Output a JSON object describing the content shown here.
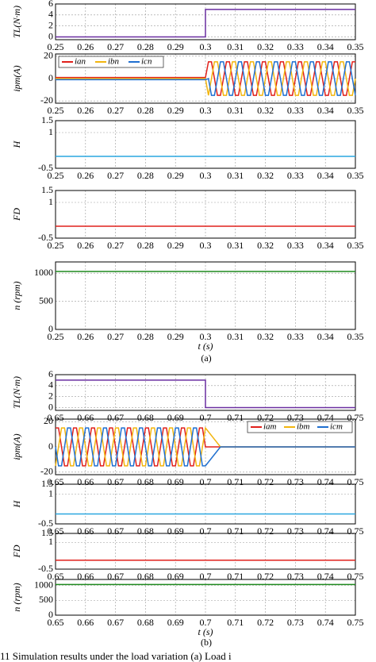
{
  "chart_data": [
    {
      "type": "line",
      "ylabel": "TL(N·m)",
      "x": [
        0.25,
        0.3,
        0.3,
        0.35
      ],
      "series": [
        {
          "color": "#6a2fa0",
          "values": [
            0,
            0,
            5,
            5
          ]
        }
      ],
      "xlim": [
        0.25,
        0.35
      ],
      "xticks": [
        0.25,
        0.26,
        0.27,
        0.28,
        0.29,
        0.3,
        0.31,
        0.32,
        0.33,
        0.34,
        0.35
      ],
      "ylim": [
        -0.5,
        6
      ],
      "yticks": [
        0,
        2,
        4,
        6
      ],
      "grid": true
    },
    {
      "type": "line",
      "ylabel": "ipm(A)",
      "legend": "upper left",
      "x": [
        0.25,
        0.3,
        0.301,
        0.302,
        0.303,
        0.304,
        0.305,
        0.306,
        0.307,
        0.308,
        0.309,
        0.31,
        0.311,
        0.312,
        0.313,
        0.314,
        0.315,
        0.316,
        0.317,
        0.318,
        0.319,
        0.32,
        0.321,
        0.322,
        0.323,
        0.324,
        0.325,
        0.326,
        0.327,
        0.328,
        0.329,
        0.33,
        0.331,
        0.332,
        0.333,
        0.334,
        0.335,
        0.336,
        0.337,
        0.338,
        0.339,
        0.34,
        0.341,
        0.342,
        0.343,
        0.344,
        0.345,
        0.346,
        0.347,
        0.348,
        0.349,
        0.35
      ],
      "series": [
        {
          "name": "ian",
          "color": "#e0201b",
          "values": [
            1,
            1,
            15,
            15,
            0,
            -15,
            -15,
            0,
            15,
            15,
            0,
            -15,
            -15,
            0,
            15,
            15,
            0,
            -15,
            -15,
            0,
            15,
            15,
            0,
            -15,
            -15,
            0,
            15,
            15,
            0,
            -15,
            -15,
            0,
            15,
            15,
            0,
            -15,
            -15,
            0,
            15,
            15,
            0,
            -15,
            -15,
            0,
            15,
            15,
            0,
            -15,
            -15,
            0,
            15,
            15
          ]
        },
        {
          "name": "ibn",
          "color": "#f2b50f",
          "values": [
            0,
            0,
            -15,
            0,
            15,
            15,
            0,
            -15,
            -15,
            0,
            15,
            15,
            0,
            -15,
            -15,
            0,
            15,
            15,
            0,
            -15,
            -15,
            0,
            15,
            15,
            0,
            -15,
            -15,
            0,
            15,
            15,
            0,
            -15,
            -15,
            0,
            15,
            15,
            0,
            -15,
            -15,
            0,
            15,
            15,
            0,
            -15,
            -15,
            0,
            15,
            15,
            0,
            -15,
            -15,
            0
          ]
        },
        {
          "name": "icn",
          "color": "#1f6fd0",
          "values": [
            -1,
            -1,
            0,
            -15,
            -15,
            0,
            15,
            15,
            0,
            -15,
            -15,
            0,
            15,
            15,
            0,
            -15,
            -15,
            0,
            15,
            15,
            0,
            -15,
            -15,
            0,
            15,
            15,
            0,
            -15,
            -15,
            0,
            15,
            15,
            0,
            -15,
            -15,
            0,
            15,
            15,
            0,
            -15,
            -15,
            0,
            15,
            15,
            0,
            -15,
            -15,
            0,
            15,
            15,
            0,
            -15
          ]
        }
      ],
      "xlim": [
        0.25,
        0.35
      ],
      "xticks": [
        0.25,
        0.26,
        0.27,
        0.28,
        0.29,
        0.3,
        0.31,
        0.32,
        0.33,
        0.34,
        0.35
      ],
      "ylim": [
        -22,
        22
      ],
      "yticks": [
        -20,
        0,
        20
      ],
      "grid": true
    },
    {
      "type": "line",
      "ylabel": "H",
      "x": [
        0.25,
        0.35
      ],
      "series": [
        {
          "color": "#2aa7e0",
          "values": [
            0,
            0
          ]
        }
      ],
      "xlim": [
        0.25,
        0.35
      ],
      "xticks": [
        0.25,
        0.26,
        0.27,
        0.28,
        0.29,
        0.3,
        0.31,
        0.32,
        0.33,
        0.34,
        0.35
      ],
      "ylim": [
        -0.5,
        1.5
      ],
      "yticks": [
        -0.5,
        1,
        1.5
      ],
      "grid": true
    },
    {
      "type": "line",
      "ylabel": "FD",
      "x": [
        0.25,
        0.35
      ],
      "series": [
        {
          "color": "#e0201b",
          "values": [
            0,
            0
          ]
        }
      ],
      "xlim": [
        0.25,
        0.35
      ],
      "xticks": [
        0.25,
        0.26,
        0.27,
        0.28,
        0.29,
        0.3,
        0.31,
        0.32,
        0.33,
        0.34,
        0.35
      ],
      "ylim": [
        -0.5,
        1.5
      ],
      "yticks": [
        -0.5,
        1,
        1.5
      ],
      "grid": true
    },
    {
      "type": "line",
      "ylabel": "n (rpm)",
      "xlabel": "t (s)",
      "x": [
        0.25,
        0.35
      ],
      "series": [
        {
          "color": "#1f8a1f",
          "values": [
            1030,
            1030
          ]
        }
      ],
      "xlim": [
        0.25,
        0.35
      ],
      "xticks": [
        0.25,
        0.26,
        0.27,
        0.28,
        0.29,
        0.3,
        0.31,
        0.32,
        0.33,
        0.34,
        0.35
      ],
      "ylim": [
        0,
        1200
      ],
      "yticks": [
        0,
        500,
        1000
      ],
      "grid": true
    },
    {
      "type": "line",
      "ylabel": "TL(N·m)",
      "x": [
        0.65,
        0.7,
        0.7,
        0.75
      ],
      "series": [
        {
          "color": "#6a2fa0",
          "values": [
            5,
            5,
            0,
            0
          ]
        }
      ],
      "xlim": [
        0.65,
        0.75
      ],
      "xticks": [
        0.65,
        0.66,
        0.67,
        0.68,
        0.69,
        0.7,
        0.71,
        0.72,
        0.73,
        0.74,
        0.75
      ],
      "ylim": [
        -0.5,
        6
      ],
      "yticks": [
        0,
        2,
        4,
        6
      ],
      "grid": true
    },
    {
      "type": "line",
      "ylabel": "ipm(A)",
      "legend": "upper right",
      "x": [
        0.65,
        0.651,
        0.652,
        0.653,
        0.654,
        0.655,
        0.656,
        0.657,
        0.658,
        0.659,
        0.66,
        0.661,
        0.662,
        0.663,
        0.664,
        0.665,
        0.666,
        0.667,
        0.668,
        0.669,
        0.67,
        0.671,
        0.672,
        0.673,
        0.674,
        0.675,
        0.676,
        0.677,
        0.678,
        0.679,
        0.68,
        0.681,
        0.682,
        0.683,
        0.684,
        0.685,
        0.686,
        0.687,
        0.688,
        0.689,
        0.69,
        0.691,
        0.692,
        0.693,
        0.694,
        0.695,
        0.696,
        0.697,
        0.698,
        0.699,
        0.7,
        0.705,
        0.75
      ],
      "series": [
        {
          "name": "iam",
          "color": "#e0201b",
          "values": [
            15,
            15,
            0,
            -15,
            -15,
            0,
            15,
            15,
            0,
            -15,
            -15,
            0,
            15,
            15,
            0,
            -15,
            -15,
            0,
            15,
            15,
            0,
            -15,
            -15,
            0,
            15,
            15,
            0,
            -15,
            -15,
            0,
            15,
            15,
            0,
            -15,
            -15,
            0,
            15,
            15,
            0,
            -15,
            -15,
            0,
            15,
            15,
            0,
            -15,
            -15,
            0,
            15,
            15,
            0,
            0,
            0
          ]
        },
        {
          "name": "ibm",
          "color": "#f2b50f",
          "values": [
            -15,
            0,
            15,
            15,
            0,
            -15,
            -15,
            0,
            15,
            15,
            0,
            -15,
            -15,
            0,
            15,
            15,
            0,
            -15,
            -15,
            0,
            15,
            15,
            0,
            -15,
            -15,
            0,
            15,
            15,
            0,
            -15,
            -15,
            0,
            15,
            15,
            0,
            -15,
            -15,
            0,
            15,
            15,
            0,
            -15,
            -15,
            0,
            15,
            15,
            0,
            -15,
            -15,
            0,
            15,
            0,
            0
          ]
        },
        {
          "name": "icm",
          "color": "#1f6fd0",
          "values": [
            0,
            -15,
            -15,
            0,
            15,
            15,
            0,
            -15,
            -15,
            0,
            15,
            15,
            0,
            -15,
            -15,
            0,
            15,
            15,
            0,
            -15,
            -15,
            0,
            15,
            15,
            0,
            -15,
            -15,
            0,
            15,
            15,
            0,
            -15,
            -15,
            0,
            15,
            15,
            0,
            -15,
            -15,
            0,
            15,
            15,
            0,
            -15,
            -15,
            0,
            15,
            15,
            0,
            -15,
            -15,
            0,
            0
          ]
        }
      ],
      "xlim": [
        0.65,
        0.75
      ],
      "xticks": [
        0.65,
        0.66,
        0.67,
        0.68,
        0.69,
        0.7,
        0.71,
        0.72,
        0.73,
        0.74,
        0.75
      ],
      "ylim": [
        -22,
        22
      ],
      "yticks": [
        -20,
        0,
        20
      ],
      "grid": true
    },
    {
      "type": "line",
      "ylabel": "H",
      "x": [
        0.65,
        0.75
      ],
      "series": [
        {
          "color": "#2aa7e0",
          "values": [
            0,
            0
          ]
        }
      ],
      "xlim": [
        0.65,
        0.75
      ],
      "xticks": [
        0.65,
        0.66,
        0.67,
        0.68,
        0.69,
        0.7,
        0.71,
        0.72,
        0.73,
        0.74,
        0.75
      ],
      "ylim": [
        -0.5,
        1.5
      ],
      "yticks": [
        -0.5,
        1,
        1.5
      ],
      "grid": true
    },
    {
      "type": "line",
      "ylabel": "FD",
      "x": [
        0.65,
        0.75
      ],
      "series": [
        {
          "color": "#e0201b",
          "values": [
            0,
            0
          ]
        }
      ],
      "xlim": [
        0.65,
        0.75
      ],
      "xticks": [
        0.65,
        0.66,
        0.67,
        0.68,
        0.69,
        0.7,
        0.71,
        0.72,
        0.73,
        0.74,
        0.75
      ],
      "ylim": [
        -0.5,
        1.5
      ],
      "yticks": [
        -0.5,
        1,
        1.5
      ],
      "grid": true
    },
    {
      "type": "line",
      "ylabel": "n (rpm)",
      "xlabel": "t (s)",
      "x": [
        0.65,
        0.75
      ],
      "series": [
        {
          "color": "#1f8a1f",
          "values": [
            1030,
            1030
          ]
        }
      ],
      "xlim": [
        0.65,
        0.75
      ],
      "xticks": [
        0.65,
        0.66,
        0.67,
        0.68,
        0.69,
        0.7,
        0.71,
        0.72,
        0.73,
        0.74,
        0.75
      ],
      "ylim": [
        0,
        1200
      ],
      "yticks": [
        0,
        500,
        1000
      ],
      "grid": true
    }
  ],
  "captions": [
    "(a)",
    "(b)"
  ],
  "figure_caption": "11    Simulation results under the load variation  (a) Load i"
}
